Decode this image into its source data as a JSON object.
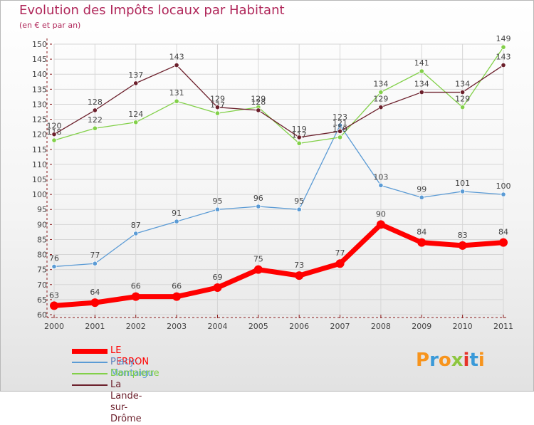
{
  "header": {
    "title": "Evolution des Impôts locaux par Habitant",
    "subtitle": "(en € et par an)"
  },
  "colors": {
    "title": "#b0275a",
    "axis": "#8b1a1a",
    "grid": "#d6d6d6",
    "label": "#444444"
  },
  "chart_data": {
    "type": "line",
    "title": "Evolution des Impôts locaux par Habitant",
    "subtitle": "(en € et par an)",
    "xlabel": "",
    "ylabel": "",
    "x": [
      "2000",
      "2001",
      "2002",
      "2003",
      "2004",
      "2005",
      "2006",
      "2007",
      "2008",
      "2009",
      "2010",
      "2011"
    ],
    "ylim": [
      60,
      150
    ],
    "yticks": [
      60,
      65,
      70,
      75,
      80,
      85,
      90,
      95,
      100,
      105,
      110,
      115,
      120,
      125,
      130,
      135,
      140,
      145,
      150
    ],
    "grid": true,
    "legend_position": "bottom-left",
    "series": [
      {
        "name": "Placy-Montaigu",
        "color": "#5b9bd5",
        "width": 1.3,
        "values": [
          76,
          77,
          87,
          91,
          95,
          96,
          95,
          123,
          103,
          99,
          101,
          100
        ]
      },
      {
        "name": "Dampierre",
        "color": "#82d049",
        "width": 1.3,
        "values": [
          118,
          122,
          124,
          131,
          127,
          129,
          117,
          119,
          134,
          141,
          129,
          149
        ]
      },
      {
        "name": "La Lande-sur-Drôme",
        "color": "#6b1f2b",
        "width": 1.3,
        "values": [
          120,
          128,
          137,
          143,
          129,
          128,
          119,
          121,
          129,
          134,
          134,
          143
        ]
      },
      {
        "name": "LE PERRON",
        "color": "#ff0000",
        "width": 7,
        "values": [
          63,
          64,
          66,
          66,
          69,
          75,
          73,
          77,
          90,
          84,
          83,
          84
        ]
      }
    ]
  },
  "legend": {
    "items": [
      {
        "label": "LE PERRON",
        "color": "#ff0000",
        "thickness": 7
      },
      {
        "label": "Placy-Montaigu",
        "color": "#5b9bd5",
        "thickness": 2
      },
      {
        "label": "Dampierre",
        "color": "#82d049",
        "thickness": 2
      },
      {
        "label": "La Lande-sur-Drôme",
        "color": "#6b1f2b",
        "thickness": 2
      }
    ]
  },
  "logo": {
    "text": "Proxiti",
    "letters": [
      {
        "ch": "P",
        "color": "#f7941d"
      },
      {
        "ch": "r",
        "color": "#3a9ad9"
      },
      {
        "ch": "o",
        "color": "#f7941d"
      },
      {
        "ch": "x",
        "color": "#8dc63f"
      },
      {
        "ch": "i",
        "color": "#e6332a"
      },
      {
        "ch": "t",
        "color": "#3a9ad9"
      },
      {
        "ch": "i",
        "color": "#f7941d"
      }
    ]
  }
}
